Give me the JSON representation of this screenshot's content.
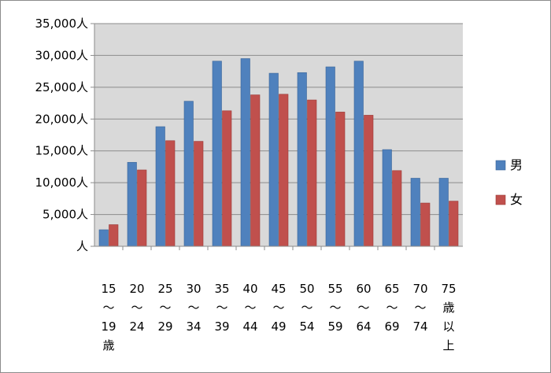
{
  "chart_data": {
    "type": "bar",
    "title": "",
    "xlabel": "",
    "ylabel": "",
    "categories": [
      [
        "15",
        "～",
        "19",
        "歳"
      ],
      [
        "20",
        "～",
        "24"
      ],
      [
        "25",
        "～",
        "29"
      ],
      [
        "30",
        "～",
        "34"
      ],
      [
        "35",
        "～",
        "39"
      ],
      [
        "40",
        "～",
        "44"
      ],
      [
        "45",
        "～",
        "49"
      ],
      [
        "50",
        "～",
        "54"
      ],
      [
        "55",
        "～",
        "59"
      ],
      [
        "60",
        "～",
        "64"
      ],
      [
        "65",
        "～",
        "69"
      ],
      [
        "70",
        "～",
        "74"
      ],
      [
        "75",
        "歳",
        "以",
        "上"
      ]
    ],
    "series": [
      {
        "name": "男",
        "color": "#4f81bd",
        "values": [
          2600,
          13200,
          18800,
          22800,
          29100,
          29500,
          27200,
          27300,
          28200,
          29100,
          15200,
          10700,
          10700
        ]
      },
      {
        "name": "女",
        "color": "#c0504d",
        "values": [
          3400,
          12000,
          16600,
          16500,
          21300,
          23800,
          23900,
          23000,
          21100,
          20600,
          11900,
          6800,
          7100
        ]
      }
    ],
    "ylim": [
      0,
      35000
    ],
    "yticks": [
      "人",
      "5,000人",
      "10,000人",
      "15,000人",
      "20,000人",
      "25,000人",
      "30,000人",
      "35,000人"
    ],
    "grid": true,
    "legend": "right",
    "plot_background": "#d9d9d9"
  }
}
